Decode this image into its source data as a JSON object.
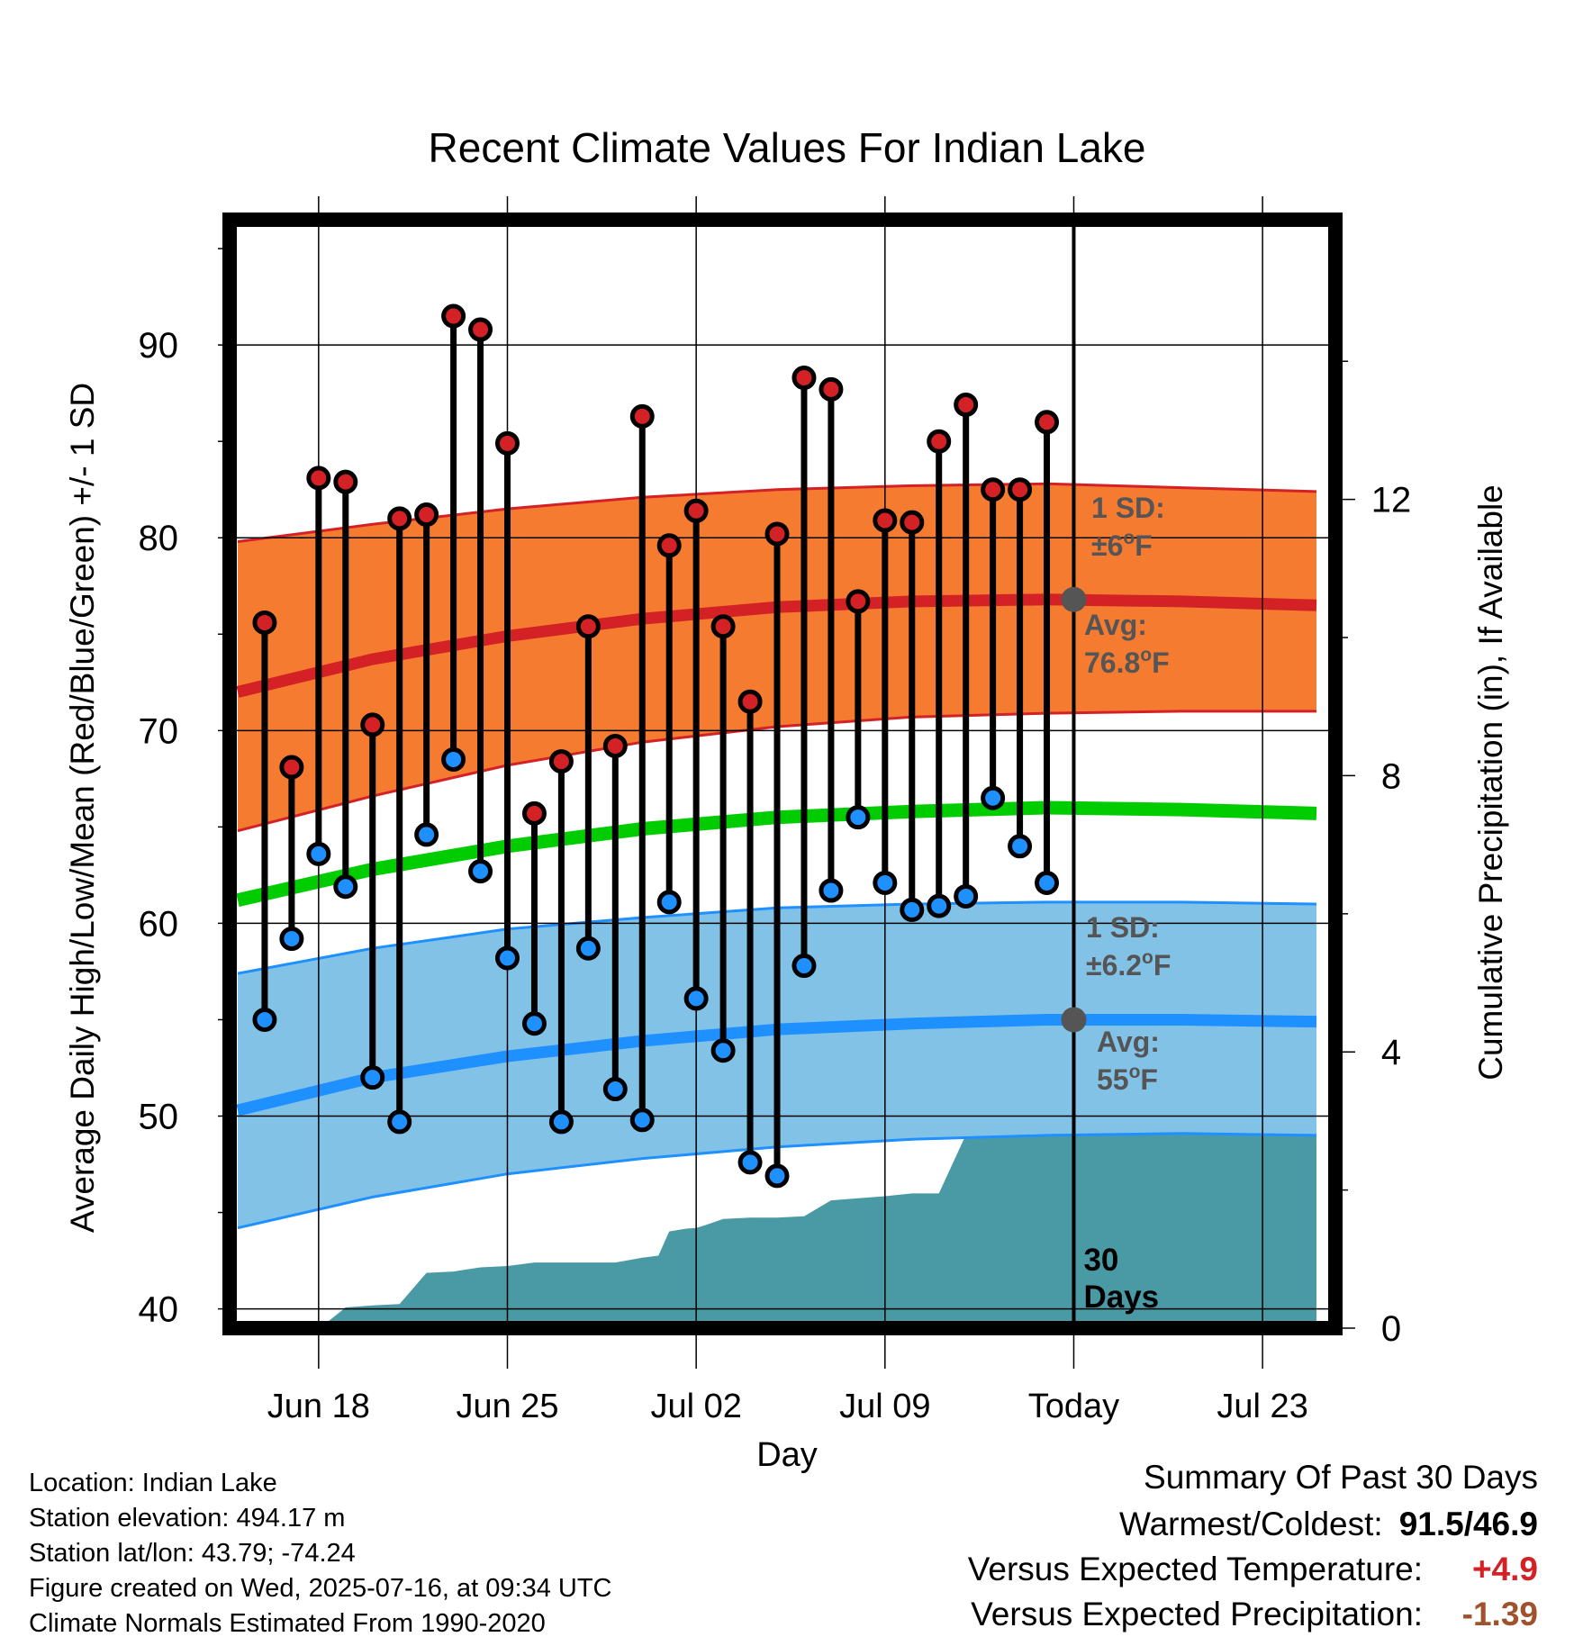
{
  "chart_data": {
    "type": "line",
    "title": "Recent Climate Values For Indian Lake",
    "xlabel": "Day",
    "ylabel": "Average Daily High/Low/Mean (Red/Blue/Green) +/- 1 SD",
    "y2label": "Cumulative Precipitation (in), If Available",
    "x_ticks": [
      {
        "day": 2,
        "label": "Jun 18"
      },
      {
        "day": 9,
        "label": "Jun 25"
      },
      {
        "day": 16,
        "label": "Jul 02"
      },
      {
        "day": 23,
        "label": "Jul 09"
      },
      {
        "day": 30,
        "label": "Today"
      },
      {
        "day": 37,
        "label": "Jul 23"
      }
    ],
    "xlim": [
      -1.3,
      39.7
    ],
    "ylim": [
      39,
      96.5
    ],
    "y_ticks": [
      40,
      50,
      60,
      70,
      80,
      90
    ],
    "y2lim": [
      0,
      16.05
    ],
    "y2_ticks": [
      0,
      4,
      8,
      12
    ],
    "today_day": 30,
    "today_label": [
      "30",
      "Days"
    ],
    "grid": true,
    "normals": {
      "day": [
        -1,
        4,
        9,
        14,
        19,
        24,
        29,
        34,
        39
      ],
      "high_mean": [
        72.0,
        73.7,
        74.9,
        75.8,
        76.4,
        76.7,
        76.8,
        76.7,
        76.5
      ],
      "high_upper": [
        79.8,
        80.7,
        81.5,
        82.1,
        82.5,
        82.7,
        82.8,
        82.6,
        82.4
      ],
      "high_lower": [
        64.8,
        66.6,
        68.2,
        69.4,
        70.2,
        70.7,
        70.9,
        71.0,
        71.0
      ],
      "low_mean": [
        50.3,
        52.0,
        53.1,
        53.9,
        54.5,
        54.8,
        55.0,
        55.0,
        54.9
      ],
      "low_upper": [
        57.4,
        58.7,
        59.7,
        60.3,
        60.8,
        61.0,
        61.1,
        61.1,
        61.0
      ],
      "low_lower": [
        44.2,
        45.8,
        47.0,
        47.8,
        48.4,
        48.8,
        49.0,
        49.1,
        49.0
      ],
      "mean_mean": [
        61.2,
        62.8,
        64.0,
        64.9,
        65.5,
        65.8,
        66.0,
        65.9,
        65.7
      ]
    },
    "series": [
      {
        "name": "High",
        "day": [
          0,
          1,
          2,
          3,
          4,
          5,
          6,
          7,
          8,
          9,
          10,
          11,
          12,
          13,
          14,
          15,
          16,
          17,
          18,
          19,
          20,
          21,
          22,
          23,
          24,
          25,
          26,
          27,
          28,
          29
        ],
        "values": [
          75.6,
          68.1,
          83.1,
          82.9,
          70.3,
          81.0,
          81.2,
          91.5,
          90.8,
          84.9,
          65.7,
          68.4,
          75.4,
          69.2,
          86.3,
          79.6,
          81.4,
          75.4,
          71.5,
          80.2,
          88.3,
          87.7,
          76.7,
          80.9,
          80.8,
          85.0,
          86.9,
          82.5,
          82.5,
          86.0
        ]
      },
      {
        "name": "Low",
        "day": [
          0,
          1,
          2,
          3,
          4,
          5,
          6,
          7,
          8,
          9,
          10,
          11,
          12,
          13,
          14,
          15,
          16,
          17,
          18,
          19,
          20,
          21,
          22,
          23,
          24,
          25,
          26,
          27,
          28,
          29
        ],
        "values": [
          55.0,
          59.2,
          63.6,
          61.9,
          52.0,
          49.7,
          64.6,
          68.5,
          62.7,
          58.2,
          54.8,
          49.7,
          58.7,
          51.4,
          49.8,
          61.1,
          56.1,
          53.4,
          47.6,
          46.9,
          57.8,
          61.7,
          65.5,
          62.1,
          60.7,
          60.9,
          61.4,
          66.5,
          64.0,
          62.1
        ]
      },
      {
        "name": "Cumulative Precipitation",
        "day": [
          -1,
          0.5,
          0.8,
          1.8,
          2.2,
          3,
          4,
          5,
          6,
          7,
          8,
          9,
          10,
          11,
          12,
          13,
          14,
          14.6,
          15,
          15.6,
          16,
          16.4,
          17,
          18,
          19,
          20,
          21,
          22,
          23,
          24,
          25,
          26,
          26.6,
          27,
          28,
          29,
          30,
          31,
          32,
          33,
          34,
          35,
          36,
          37,
          38,
          39
        ],
        "values": [
          0,
          0,
          0,
          0,
          0.05,
          0.3,
          0.33,
          0.35,
          0.8,
          0.82,
          0.88,
          0.9,
          0.95,
          0.95,
          0.95,
          0.95,
          1.02,
          1.05,
          1.4,
          1.44,
          1.45,
          1.5,
          1.58,
          1.6,
          1.6,
          1.62,
          1.85,
          1.88,
          1.91,
          1.95,
          1.95,
          2.8,
          3.05,
          3.1,
          3.1,
          3.1,
          3.1,
          3.1,
          3.1,
          3.1,
          3.1,
          3.1,
          3.1,
          3.1,
          3.1,
          3.1
        ]
      }
    ],
    "annotations": {
      "high_sd": [
        "1 SD:",
        "±6",
        "o",
        "F"
      ],
      "high_avg": [
        "Avg:",
        "76.8",
        "o",
        "F"
      ],
      "low_sd": [
        "1 SD:",
        "±6.2",
        "o",
        "F"
      ],
      "low_avg": [
        "Avg:",
        "55",
        "o",
        "F"
      ]
    },
    "colors": {
      "high_band": "#f47b30",
      "high_line": "#d42126",
      "low_band": "#83c2e7",
      "low_line": "#1e90ff",
      "mean_line": "#00cc00",
      "precip": "#4a9aa5",
      "high_point": "#d42126",
      "low_point": "#1e90ff",
      "avg_point": "#555555",
      "annotation_text": "#555555"
    }
  },
  "info": {
    "location": "Location: Indian Lake",
    "elevation": "Station elevation: 494.17 m",
    "latlon": "Station lat/lon: 43.79; -74.24",
    "created": "Figure created on Wed, 2025-07-16, at 09:34 UTC",
    "normals": "Climate Normals Estimated From 1990-2020"
  },
  "summary": {
    "title": "Summary Of Past 30 Days",
    "warm_cold_label": "Warmest/Coldest:",
    "warm_cold_value": "91.5/46.9",
    "temp_label": "Versus Expected Temperature:",
    "temp_value": "+4.9",
    "temp_color": "#d42126",
    "precip_label": "Versus Expected Precipitation:",
    "precip_value": "-1.39",
    "precip_color": "#a0522d"
  }
}
